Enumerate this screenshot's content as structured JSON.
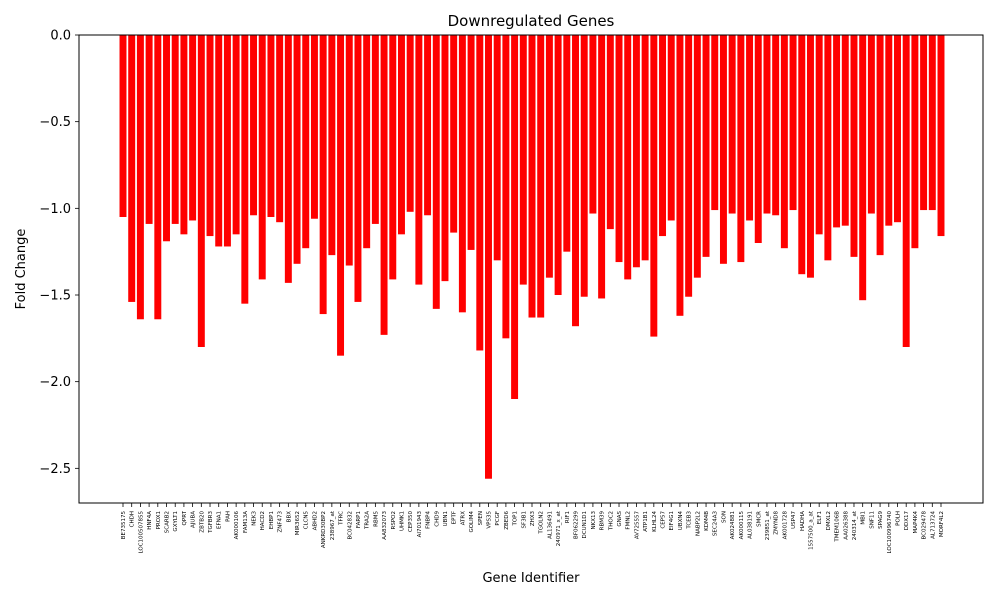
{
  "chart_data": {
    "type": "bar",
    "title": "Downregulated Genes",
    "xlabel": "Gene Identifier",
    "ylabel": "Fold Change",
    "ylim": [
      -2.7,
      0.0
    ],
    "yticks": [
      "0.0",
      "−0.5",
      "−1.0",
      "−1.5",
      "−2.0",
      "−2.5"
    ],
    "ytick_values": [
      0.0,
      -0.5,
      -1.0,
      -1.5,
      -2.0,
      -2.5
    ],
    "grid": false,
    "legend": "none",
    "bar_color": "#ff0000",
    "categories": [
      "BE735175",
      "CHDH",
      "LOC100507855",
      "HNF4A",
      "PROX1",
      "SCARB2",
      "GXYLT1",
      "QPRT",
      "AJUBA",
      "ZBTB20",
      "TGFBR3",
      "EFNA1",
      "PAH",
      "AK000106",
      "FAM13A",
      "NEK3",
      "HACD2",
      "EHBP1",
      "ZNF473",
      "BBX",
      "MIR3652",
      "CLCN5",
      "ABHD2",
      "ANKRD30BP2",
      "238967_at",
      "TFRC",
      "BC042832",
      "FARP1",
      "TRA2A",
      "RBM5",
      "AA832073",
      "RSPO2",
      "UHMK1",
      "CEP350",
      "AI701943",
      "FNBP4",
      "CHD9",
      "UBN1",
      "EPTF",
      "ATRX",
      "GOLIM4",
      "SPEN",
      "VPS35",
      "PCGF",
      "ZBED6",
      "TOP1",
      "SF3B1",
      "ZHX3",
      "TGOLN2",
      "AL136491",
      "240971_x_at",
      "RIF1",
      "BF062299",
      "DCUN1D1",
      "NKX13",
      "RBM39",
      "THOC2",
      "GNAS",
      "FMNL2",
      "AV725557",
      "ATP1B1",
      "KLHL24",
      "CEP57",
      "EIF4G1",
      "UBXN4",
      "TCEB3",
      "NABP2L2",
      "KDM4B",
      "SEC24A3",
      "SON",
      "AK024881",
      "AK000115",
      "AL038191",
      "SMCR",
      "239851_at",
      "ZMYND8",
      "AK001728",
      "USP47",
      "HADHA",
      "1557500_a_at",
      "ELF1",
      "DMXL2",
      "TMEM106B",
      "AA026388",
      "240314_at",
      "MBI1",
      "SNF11",
      "SPAG9",
      "LOC100996740",
      "POLH",
      "DDX17",
      "MAP4K4",
      "BC029478",
      "AL713724",
      "MORF4L2"
    ],
    "values": [
      -1.05,
      -1.54,
      -1.64,
      -1.09,
      -1.64,
      -1.19,
      -1.09,
      -1.15,
      -1.07,
      -1.8,
      -1.16,
      -1.22,
      -1.22,
      -1.15,
      -1.55,
      -1.04,
      -1.41,
      -1.05,
      -1.08,
      -1.43,
      -1.32,
      -1.23,
      -1.06,
      -1.61,
      -1.27,
      -1.85,
      -1.33,
      -1.54,
      -1.23,
      -1.09,
      -1.73,
      -1.41,
      -1.15,
      -1.02,
      -1.44,
      -1.04,
      -1.58,
      -1.42,
      -1.14,
      -1.6,
      -1.24,
      -1.82,
      -2.56,
      -1.3,
      -1.75,
      -2.1,
      -1.44,
      -1.63,
      -1.63,
      -1.4,
      -1.5,
      -1.25,
      -1.68,
      -1.51,
      -1.03,
      -1.52,
      -1.12,
      -1.31,
      -1.41,
      -1.34,
      -1.3,
      -1.74,
      -1.16,
      -1.07,
      -1.62,
      -1.51,
      -1.4,
      -1.28,
      -1.01,
      -1.32,
      -1.03,
      -1.31,
      -1.07,
      -1.2,
      -1.03,
      -1.04,
      -1.23,
      -1.01,
      -1.38,
      -1.4,
      -1.15,
      -1.3,
      -1.11,
      -1.1,
      -1.28,
      -1.53,
      -1.03,
      -1.27,
      -1.1,
      -1.08,
      -1.8,
      -1.23,
      -1.01,
      -1.01,
      -1.16
    ]
  }
}
